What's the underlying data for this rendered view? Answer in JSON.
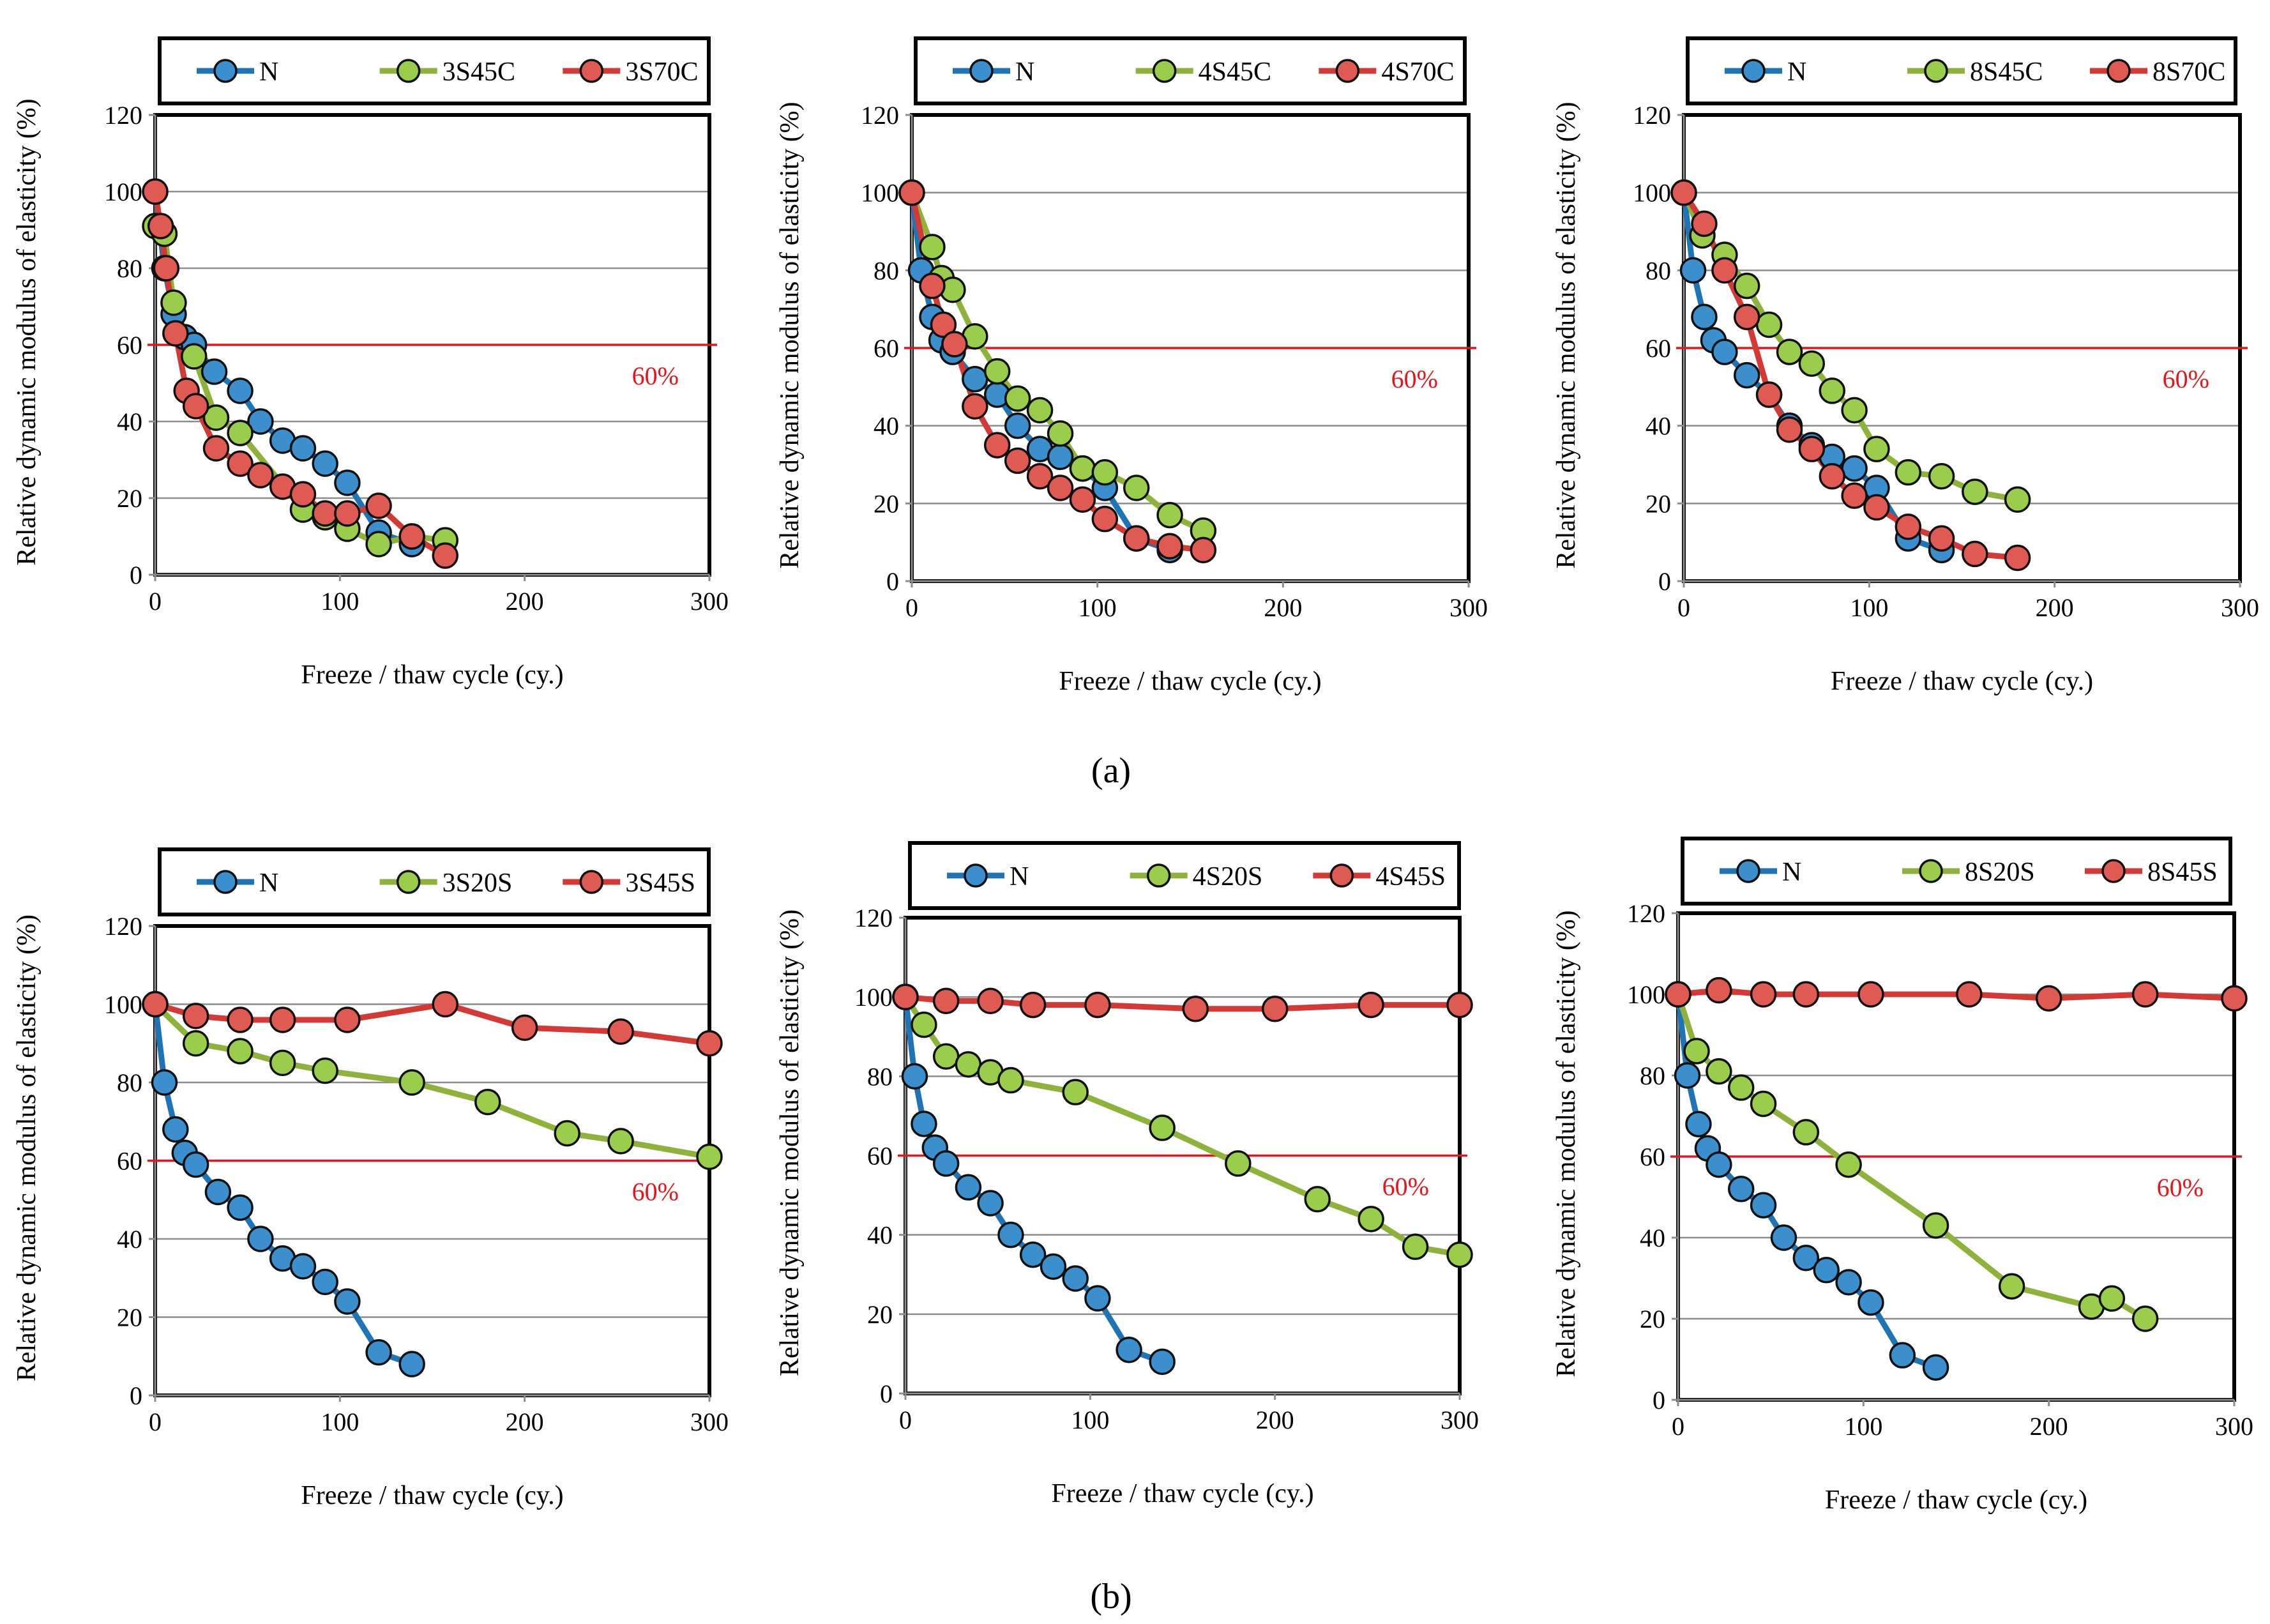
{
  "figure": {
    "panel_labels": [
      "(a)",
      "(b)"
    ]
  },
  "chart_data": [
    {
      "type": "line",
      "panel": "(a)",
      "xlabel": "Freeze / thaw cycle (cy.)",
      "ylabel": "Relative dynamic modulus of elasticity (%)",
      "xlim": [
        0,
        300
      ],
      "ylim": [
        0,
        120
      ],
      "xticks": [
        "0",
        "100",
        "200",
        "300"
      ],
      "yticks": [
        "0",
        "20",
        "40",
        "60",
        "80",
        "100",
        "120"
      ],
      "threshold": {
        "value": 60,
        "label": "60%",
        "color": "#e8141a"
      },
      "legend": {
        "position": "top"
      },
      "series": [
        {
          "name": "N",
          "color": "#1f74b6",
          "marker_fill": "#3a8fcc",
          "x": [
            0,
            5,
            10,
            16,
            21,
            32,
            46,
            57,
            69,
            80,
            92,
            104,
            121,
            139
          ],
          "y": [
            100,
            80,
            68,
            62,
            60,
            53,
            48,
            40,
            35,
            33,
            29,
            24,
            11,
            8
          ]
        },
        {
          "name": "3S45C",
          "color": "#8db33a",
          "marker_fill": "#9acd4c",
          "x": [
            0,
            5,
            10,
            21,
            33,
            46,
            80,
            92,
            104,
            121,
            139,
            157
          ],
          "y": [
            91,
            89,
            71,
            57,
            41,
            37,
            17,
            15,
            12,
            8,
            10,
            9
          ]
        },
        {
          "name": "3S70C",
          "color": "#d43a35",
          "marker_fill": "#e05a54",
          "x": [
            0,
            3,
            6,
            11,
            17,
            22,
            33,
            46,
            57,
            69,
            80,
            92,
            104,
            121,
            139,
            157
          ],
          "y": [
            100,
            91,
            80,
            63,
            48,
            44,
            33,
            29,
            26,
            23,
            21,
            16,
            16,
            18,
            10,
            5
          ]
        }
      ]
    },
    {
      "type": "line",
      "panel": "(a)",
      "xlabel": "Freeze / thaw cycle (cy.)",
      "ylabel": "Relative dynamic modulus of elasticity (%)",
      "xlim": [
        0,
        300
      ],
      "ylim": [
        0,
        120
      ],
      "xticks": [
        "0",
        "100",
        "200",
        "300"
      ],
      "yticks": [
        "0",
        "20",
        "40",
        "60",
        "80",
        "100",
        "120"
      ],
      "threshold": {
        "value": 60,
        "label": "60%",
        "color": "#e8141a"
      },
      "legend": {
        "position": "top"
      },
      "series": [
        {
          "name": "N",
          "color": "#1f74b6",
          "marker_fill": "#3a8fcc",
          "x": [
            0,
            5,
            11,
            16,
            22,
            34,
            46,
            57,
            69,
            80,
            92,
            104,
            121,
            139
          ],
          "y": [
            100,
            80,
            68,
            62,
            59,
            52,
            48,
            40,
            34,
            32,
            29,
            24,
            11,
            8
          ]
        },
        {
          "name": "4S45C",
          "color": "#8db33a",
          "marker_fill": "#9acd4c",
          "x": [
            0,
            11,
            16,
            22,
            34,
            46,
            57,
            69,
            80,
            92,
            104,
            121,
            139,
            157
          ],
          "y": [
            100,
            86,
            78,
            75,
            63,
            54,
            47,
            44,
            38,
            29,
            28,
            24,
            17,
            13
          ]
        },
        {
          "name": "4S70C",
          "color": "#d43a35",
          "marker_fill": "#e05a54",
          "x": [
            0,
            11,
            17,
            23,
            34,
            46,
            57,
            69,
            80,
            92,
            104,
            121,
            139,
            157
          ],
          "y": [
            100,
            76,
            66,
            61,
            45,
            35,
            31,
            27,
            24,
            21,
            16,
            11,
            9,
            8
          ]
        }
      ]
    },
    {
      "type": "line",
      "panel": "(a)",
      "xlabel": "Freeze / thaw cycle (cy.)",
      "ylabel": "Relative dynamic modulus of elasticity (%)",
      "xlim": [
        0,
        300
      ],
      "ylim": [
        0,
        120
      ],
      "xticks": [
        "0",
        "100",
        "200",
        "300"
      ],
      "yticks": [
        "0",
        "20",
        "40",
        "60",
        "80",
        "100",
        "120"
      ],
      "threshold": {
        "value": 60,
        "label": "60%",
        "color": "#e8141a"
      },
      "legend": {
        "position": "top"
      },
      "series": [
        {
          "name": "N",
          "color": "#1f74b6",
          "marker_fill": "#3a8fcc",
          "x": [
            0,
            5,
            11,
            16,
            22,
            34,
            46,
            57,
            69,
            80,
            92,
            104,
            121,
            139
          ],
          "y": [
            100,
            80,
            68,
            62,
            59,
            53,
            48,
            40,
            35,
            32,
            29,
            24,
            11,
            8
          ]
        },
        {
          "name": "8S45C",
          "color": "#8db33a",
          "marker_fill": "#9acd4c",
          "x": [
            0,
            10,
            22,
            34,
            46,
            57,
            69,
            80,
            92,
            104,
            121,
            139,
            157,
            180
          ],
          "y": [
            100,
            89,
            84,
            76,
            66,
            59,
            56,
            49,
            44,
            34,
            28,
            27,
            23,
            21
          ]
        },
        {
          "name": "8S70C",
          "color": "#d43a35",
          "marker_fill": "#e05a54",
          "x": [
            0,
            11,
            22,
            34,
            46,
            57,
            69,
            80,
            92,
            104,
            121,
            139,
            157,
            180
          ],
          "y": [
            100,
            92,
            80,
            68,
            48,
            39,
            34,
            27,
            22,
            19,
            14,
            11,
            7,
            6
          ]
        }
      ]
    },
    {
      "type": "line",
      "panel": "(b)",
      "xlabel": "Freeze / thaw cycle (cy.)",
      "ylabel": "Relative dynamic modulus of elasticity (%)",
      "xlim": [
        0,
        300
      ],
      "ylim": [
        0,
        120
      ],
      "xticks": [
        "0",
        "100",
        "200",
        "300"
      ],
      "yticks": [
        "0",
        "20",
        "40",
        "60",
        "80",
        "100",
        "120"
      ],
      "threshold": {
        "value": 60,
        "label": "60%",
        "color": "#e8141a"
      },
      "legend": {
        "position": "top"
      },
      "series": [
        {
          "name": "N",
          "color": "#1f74b6",
          "marker_fill": "#3a8fcc",
          "x": [
            0,
            5,
            11,
            16,
            22,
            34,
            46,
            57,
            69,
            80,
            92,
            104,
            121,
            139
          ],
          "y": [
            100,
            80,
            68,
            62,
            59,
            52,
            48,
            40,
            35,
            33,
            29,
            24,
            11,
            8
          ]
        },
        {
          "name": "3S20S",
          "color": "#8db33a",
          "marker_fill": "#9acd4c",
          "x": [
            0,
            22,
            46,
            69,
            92,
            139,
            180,
            223,
            252,
            300
          ],
          "y": [
            100,
            90,
            88,
            85,
            83,
            80,
            75,
            67,
            65,
            61
          ]
        },
        {
          "name": "3S45S",
          "color": "#d43a35",
          "marker_fill": "#e05a54",
          "x": [
            0,
            22,
            46,
            69,
            104,
            157,
            200,
            252,
            300
          ],
          "y": [
            100,
            97,
            96,
            96,
            96,
            100,
            94,
            93,
            90
          ]
        }
      ]
    },
    {
      "type": "line",
      "panel": "(b)",
      "xlabel": "Freeze / thaw cycle (cy.)",
      "ylabel": "Relative dynamic modulus of elasticity (%)",
      "xlim": [
        0,
        300
      ],
      "ylim": [
        0,
        120
      ],
      "xticks": [
        "0",
        "100",
        "200",
        "300"
      ],
      "yticks": [
        "0",
        "20",
        "40",
        "60",
        "80",
        "100",
        "120"
      ],
      "threshold": {
        "value": 60,
        "label": "60%",
        "color": "#e8141a"
      },
      "legend": {
        "position": "top"
      },
      "series": [
        {
          "name": "N",
          "color": "#1f74b6",
          "marker_fill": "#3a8fcc",
          "x": [
            0,
            5,
            10,
            16,
            22,
            34,
            46,
            57,
            69,
            80,
            92,
            104,
            121,
            139
          ],
          "y": [
            100,
            80,
            68,
            62,
            58,
            52,
            48,
            40,
            35,
            32,
            29,
            24,
            11,
            8
          ]
        },
        {
          "name": "4S20S",
          "color": "#8db33a",
          "marker_fill": "#9acd4c",
          "x": [
            0,
            10,
            22,
            34,
            46,
            57,
            92,
            139,
            180,
            223,
            252,
            276,
            300
          ],
          "y": [
            100,
            93,
            85,
            83,
            81,
            79,
            76,
            67,
            58,
            49,
            44,
            37,
            35
          ]
        },
        {
          "name": "4S45S",
          "color": "#d43a35",
          "marker_fill": "#e05a54",
          "x": [
            0,
            22,
            46,
            69,
            104,
            157,
            200,
            252,
            300
          ],
          "y": [
            100,
            99,
            99,
            98,
            98,
            97,
            97,
            98,
            98
          ]
        }
      ]
    },
    {
      "type": "line",
      "panel": "(b)",
      "xlabel": "Freeze / thaw cycle (cy.)",
      "ylabel": "Relative dynamic modulus of elasticity (%)",
      "xlim": [
        0,
        300
      ],
      "ylim": [
        0,
        120
      ],
      "xticks": [
        "0",
        "100",
        "200",
        "300"
      ],
      "yticks": [
        "0",
        "20",
        "40",
        "60",
        "80",
        "100",
        "120"
      ],
      "threshold": {
        "value": 60,
        "label": "60%",
        "color": "#e8141a"
      },
      "legend": {
        "position": "top"
      },
      "series": [
        {
          "name": "N",
          "color": "#1f74b6",
          "marker_fill": "#3a8fcc",
          "x": [
            0,
            5,
            11,
            16,
            22,
            34,
            46,
            57,
            69,
            80,
            92,
            104,
            121,
            139
          ],
          "y": [
            100,
            80,
            68,
            62,
            58,
            52,
            48,
            40,
            35,
            32,
            29,
            24,
            11,
            8
          ]
        },
        {
          "name": "8S20S",
          "color": "#8db33a",
          "marker_fill": "#9acd4c",
          "x": [
            0,
            10,
            22,
            34,
            46,
            69,
            92,
            139,
            180,
            223,
            234,
            252
          ],
          "y": [
            100,
            86,
            81,
            77,
            73,
            66,
            58,
            43,
            28,
            23,
            25,
            20
          ]
        },
        {
          "name": "8S45S",
          "color": "#d43a35",
          "marker_fill": "#e05a54",
          "x": [
            0,
            22,
            46,
            69,
            104,
            157,
            200,
            252,
            300
          ],
          "y": [
            100,
            101,
            100,
            100,
            100,
            100,
            99,
            100,
            99
          ]
        }
      ]
    }
  ]
}
